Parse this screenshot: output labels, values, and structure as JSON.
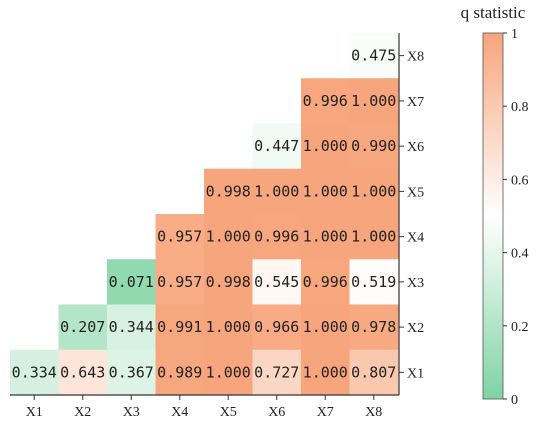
{
  "chart_data": {
    "type": "heatmap",
    "x_labels": [
      "X1",
      "X2",
      "X3",
      "X4",
      "X5",
      "X6",
      "X7",
      "X8"
    ],
    "y_labels": [
      "X8",
      "X7",
      "X6",
      "X5",
      "X4",
      "X3",
      "X2",
      "X1"
    ],
    "matrix": [
      [
        null,
        null,
        null,
        null,
        null,
        null,
        null,
        "0.475"
      ],
      [
        null,
        null,
        null,
        null,
        null,
        null,
        "0.996",
        "1.000"
      ],
      [
        null,
        null,
        null,
        null,
        null,
        "0.447",
        "1.000",
        "0.990"
      ],
      [
        null,
        null,
        null,
        null,
        "0.998",
        "1.000",
        "1.000",
        "1.000"
      ],
      [
        null,
        null,
        null,
        "0.957",
        "1.000",
        "0.996",
        "1.000",
        "1.000"
      ],
      [
        null,
        null,
        "0.071",
        "0.957",
        "0.998",
        "0.545",
        "0.996",
        "0.519"
      ],
      [
        null,
        "0.207",
        "0.344",
        "0.991",
        "1.000",
        "0.966",
        "1.000",
        "0.978"
      ],
      [
        "0.334",
        "0.643",
        "0.367",
        "0.989",
        "1.000",
        "0.727",
        "1.000",
        "0.807"
      ]
    ],
    "colorbar": {
      "title": "q statistic",
      "range": [
        0,
        1
      ],
      "ticks": [
        "0",
        "0.2",
        "0.4",
        "0.6",
        "0.8",
        "1"
      ],
      "colors": {
        "low": "#7fd3a2",
        "mid": "#ffffff",
        "high": "#f7a57c"
      }
    }
  }
}
